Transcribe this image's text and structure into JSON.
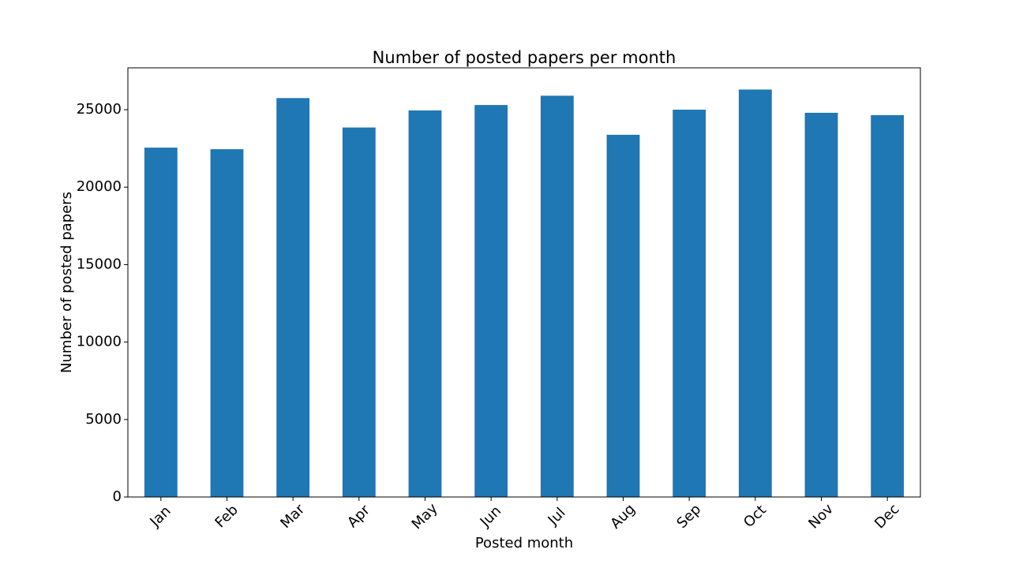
{
  "chart_data": {
    "type": "bar",
    "title": "Number of posted papers per month",
    "xlabel": "Posted month",
    "ylabel": "Number of posted papers",
    "categories": [
      "Jan",
      "Feb",
      "Mar",
      "Apr",
      "May",
      "Jun",
      "Jul",
      "Aug",
      "Sep",
      "Oct",
      "Nov",
      "Dec"
    ],
    "values": [
      22550,
      22450,
      25750,
      23850,
      24950,
      25300,
      25900,
      23380,
      25000,
      26300,
      24800,
      24650
    ],
    "ylim": [
      0,
      27700
    ],
    "yticks": [
      0,
      5000,
      10000,
      15000,
      20000,
      25000
    ],
    "ytick_labels": [
      "0",
      "5000",
      "10000",
      "15000",
      "20000",
      "25000"
    ],
    "bar_color": "#1f77b4",
    "grid": false,
    "legend": "none",
    "xtick_rotation": "45 degrees"
  }
}
